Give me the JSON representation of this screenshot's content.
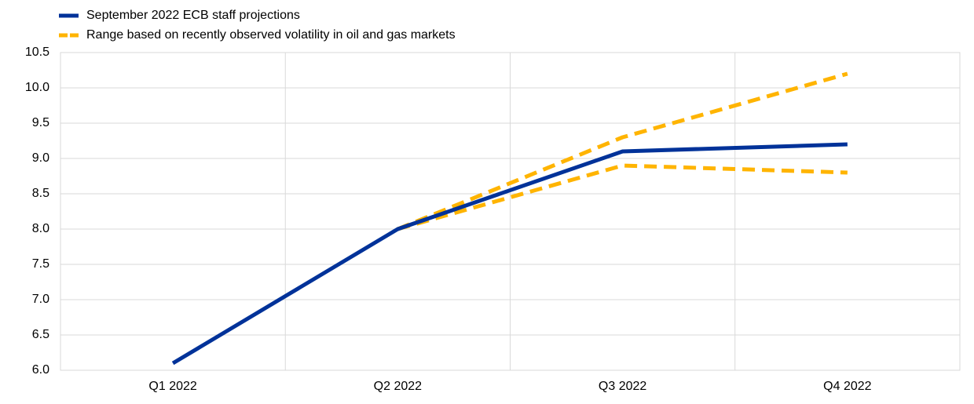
{
  "chart_data": {
    "type": "line",
    "categories": [
      "Q1 2022",
      "Q2 2022",
      "Q3 2022",
      "Q4 2022"
    ],
    "series": [
      {
        "name": "September 2022 ECB staff projections",
        "color": "#003299",
        "values": [
          6.1,
          8.0,
          9.1,
          9.2
        ]
      },
      {
        "name": "Range based on recently observed volatility in oil and gas markets",
        "color": "#ffb400",
        "dashed": true,
        "upper": [
          null,
          8.0,
          9.3,
          10.2
        ],
        "lower": [
          null,
          8.0,
          8.9,
          8.8
        ]
      }
    ],
    "ylim": [
      6.0,
      10.5
    ],
    "yticks": [
      {
        "value": 6,
        "label": "6.0"
      },
      6.5,
      {
        "value": 7,
        "label": "7.0"
      },
      7.5,
      {
        "value": 8,
        "label": "8.0"
      },
      8.5,
      {
        "value": 9,
        "label": "9.0"
      },
      9.5,
      {
        "value": 10,
        "label": "10.0"
      },
      10.5
    ],
    "grid": true
  }
}
